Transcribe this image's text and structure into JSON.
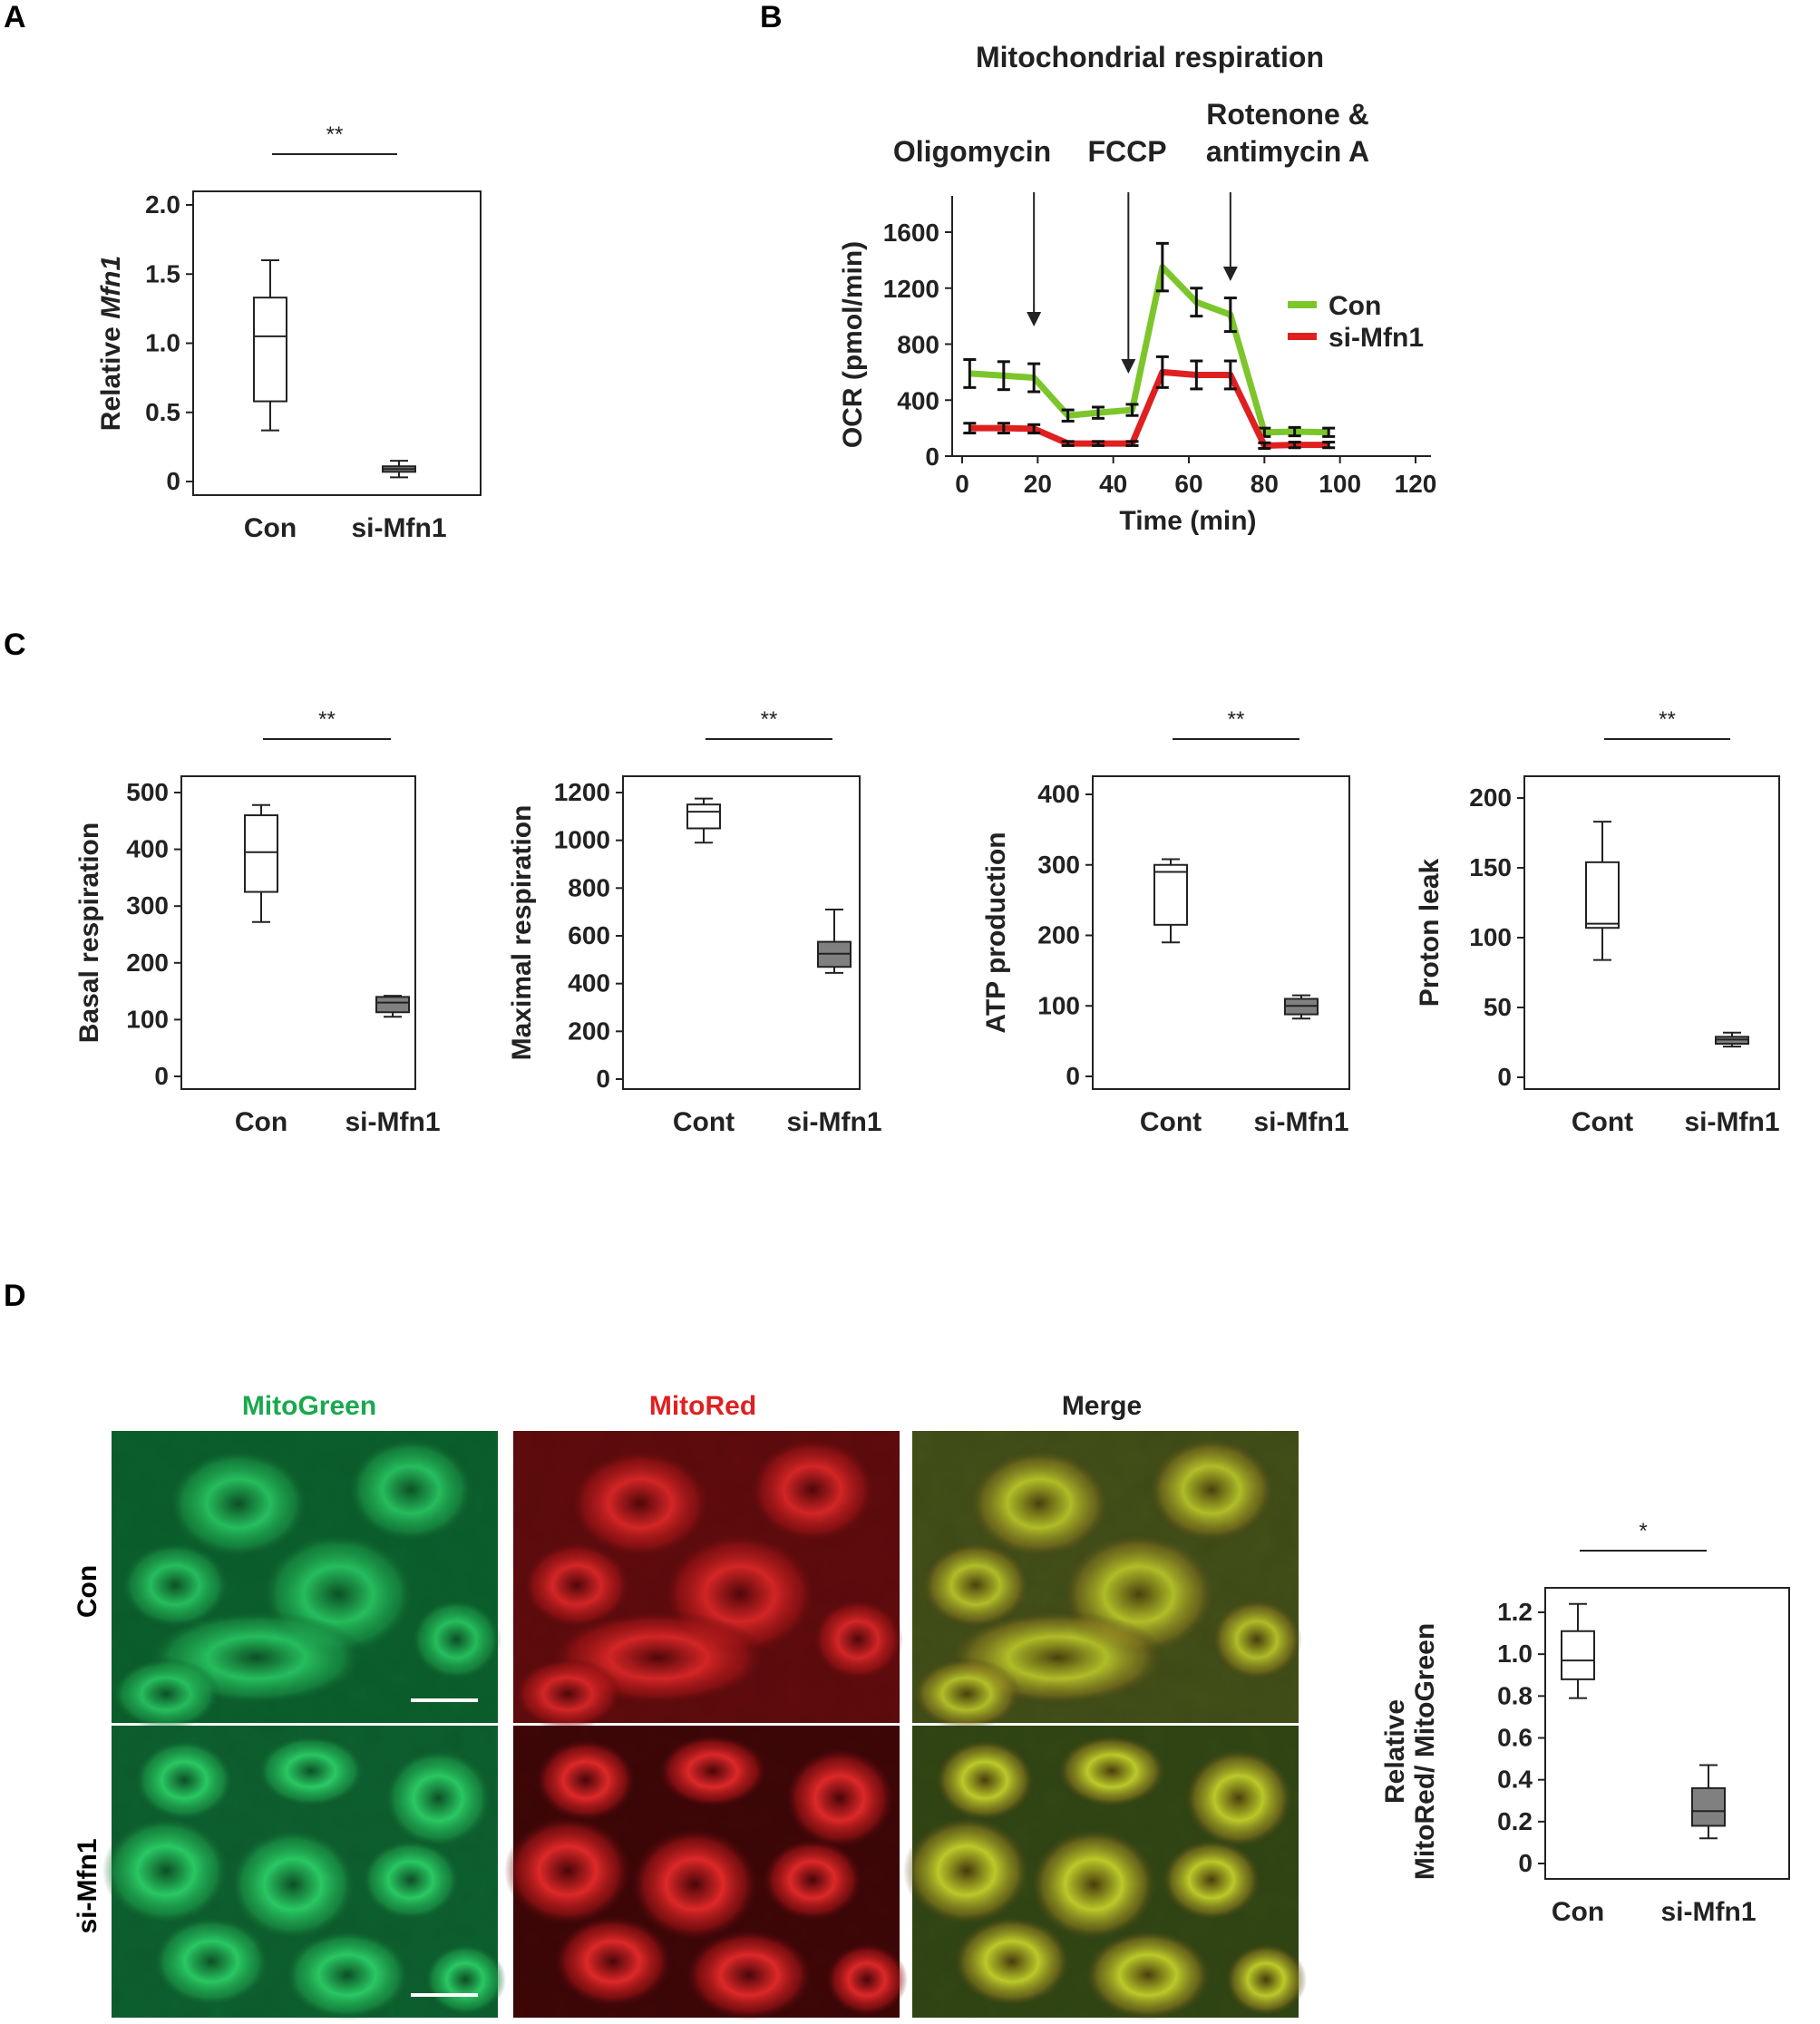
{
  "panels": {
    "A": "A",
    "B": "B",
    "C": "C",
    "D": "D"
  },
  "colors": {
    "con": "#7cc62b",
    "si": "#e02020",
    "box_filled": "#808080",
    "mitogreen": "#1aa84f",
    "mitored": "#e02020"
  },
  "chart_data": [
    {
      "id": "A",
      "type": "box",
      "ylabel_prefix": "Relative ",
      "ylabel_italic": "Mfn1",
      "categories": [
        "Con",
        "si-Mfn1"
      ],
      "ylim": [
        0,
        2.0
      ],
      "yticks": [
        {
          "v": 0,
          "t": "0"
        },
        {
          "v": 0.5,
          "t": "0.5"
        },
        {
          "v": 1,
          "t": "1.0"
        },
        {
          "v": 1.5,
          "t": "1.5"
        },
        {
          "v": 2,
          "t": "2.0"
        }
      ],
      "significance": "**",
      "boxes": [
        {
          "min": 0.37,
          "q1": 0.58,
          "median": 1.05,
          "q3": 1.33,
          "max": 1.6,
          "filled": false
        },
        {
          "min": 0.03,
          "q1": 0.07,
          "median": 0.09,
          "q3": 0.11,
          "max": 0.15,
          "filled": true
        }
      ]
    },
    {
      "id": "B",
      "type": "line",
      "title": "Mitochondrial respiration",
      "xlabel": "Time (min)",
      "ylabel": "OCR (pmol/min)",
      "xlim": [
        0,
        120
      ],
      "ylim": [
        0,
        1600
      ],
      "xticks": [
        0,
        20,
        40,
        60,
        80,
        100,
        120
      ],
      "yticks": [
        0,
        400,
        800,
        1200,
        1600
      ],
      "injections": [
        {
          "label": "Oligomycin",
          "x": 19
        },
        {
          "label": "FCCP",
          "x": 44
        },
        {
          "label": "Rotenone &",
          "label2": "antimycin A",
          "x": 71
        }
      ],
      "x": [
        2,
        11,
        19,
        28,
        36,
        45,
        53,
        62,
        71,
        80,
        88,
        97
      ],
      "series": [
        {
          "name": "Con",
          "values": [
            590,
            575,
            560,
            290,
            310,
            330,
            1350,
            1100,
            1010,
            170,
            175,
            170
          ],
          "err": [
            100,
            100,
            100,
            40,
            40,
            40,
            170,
            100,
            120,
            30,
            30,
            30
          ]
        },
        {
          "name": "si-Mfn1",
          "values": [
            200,
            200,
            195,
            90,
            90,
            90,
            600,
            580,
            580,
            75,
            80,
            80
          ],
          "err": [
            35,
            35,
            30,
            15,
            15,
            15,
            110,
            100,
            100,
            20,
            20,
            20
          ]
        }
      ]
    },
    {
      "id": "C1",
      "type": "box",
      "ylabel": "Basal respiration",
      "categories": [
        "Con",
        "si-Mfn1"
      ],
      "ylim": [
        0,
        500
      ],
      "yticks": [
        {
          "v": 0,
          "t": "0"
        },
        {
          "v": 100,
          "t": "100"
        },
        {
          "v": 200,
          "t": "200"
        },
        {
          "v": 300,
          "t": "300"
        },
        {
          "v": 400,
          "t": "400"
        },
        {
          "v": 500,
          "t": "500"
        }
      ],
      "significance": "**",
      "boxes": [
        {
          "min": 272,
          "q1": 325,
          "median": 395,
          "q3": 460,
          "max": 478,
          "filled": false
        },
        {
          "min": 105,
          "q1": 113,
          "median": 130,
          "q3": 140,
          "max": 142,
          "filled": true
        }
      ]
    },
    {
      "id": "C2",
      "type": "box",
      "ylabel": "Maximal respiration",
      "categories": [
        "Cont",
        "si-Mfn1"
      ],
      "ylim": [
        0,
        1200
      ],
      "yticks": [
        {
          "v": 0,
          "t": "0"
        },
        {
          "v": 200,
          "t": "200"
        },
        {
          "v": 400,
          "t": "400"
        },
        {
          "v": 600,
          "t": "600"
        },
        {
          "v": 800,
          "t": "800"
        },
        {
          "v": 1000,
          "t": "1000"
        },
        {
          "v": 1200,
          "t": "1200"
        }
      ],
      "significance": "**",
      "boxes": [
        {
          "min": 990,
          "q1": 1050,
          "median": 1120,
          "q3": 1150,
          "max": 1175,
          "filled": false
        },
        {
          "min": 445,
          "q1": 470,
          "median": 525,
          "q3": 575,
          "max": 710,
          "filled": true
        }
      ]
    },
    {
      "id": "C3",
      "type": "box",
      "ylabel": "ATP production",
      "categories": [
        "Cont",
        "si-Mfn1"
      ],
      "ylim": [
        0,
        400
      ],
      "yticks": [
        {
          "v": 0,
          "t": "0"
        },
        {
          "v": 100,
          "t": "100"
        },
        {
          "v": 200,
          "t": "200"
        },
        {
          "v": 300,
          "t": "300"
        },
        {
          "v": 400,
          "t": "400"
        }
      ],
      "significance": "**",
      "boxes": [
        {
          "min": 190,
          "q1": 215,
          "median": 290,
          "q3": 300,
          "max": 308,
          "filled": false
        },
        {
          "min": 82,
          "q1": 88,
          "median": 100,
          "q3": 110,
          "max": 115,
          "filled": true
        }
      ]
    },
    {
      "id": "C4",
      "type": "box",
      "ylabel": "Proton leak",
      "categories": [
        "Cont",
        "si-Mfn1"
      ],
      "ylim": [
        0,
        200
      ],
      "yticks": [
        {
          "v": 0,
          "t": "0"
        },
        {
          "v": 50,
          "t": "50"
        },
        {
          "v": 100,
          "t": "100"
        },
        {
          "v": 150,
          "t": "150"
        },
        {
          "v": 200,
          "t": "200"
        }
      ],
      "significance": "**",
      "boxes": [
        {
          "min": 84,
          "q1": 107,
          "median": 110,
          "q3": 154,
          "max": 183,
          "filled": false
        },
        {
          "min": 22,
          "q1": 24,
          "median": 27,
          "q3": 29,
          "max": 32,
          "filled": true
        }
      ]
    },
    {
      "id": "D",
      "type": "box",
      "ylabel_line1": "Relative",
      "ylabel_line2": "MitoRed/ MitoGreen",
      "categories": [
        "Con",
        "si-Mfn1"
      ],
      "ylim": [
        0,
        1.2
      ],
      "yticks": [
        {
          "v": 0,
          "t": "0"
        },
        {
          "v": 0.2,
          "t": "0.2"
        },
        {
          "v": 0.4,
          "t": "0.4"
        },
        {
          "v": 0.6,
          "t": "0.6"
        },
        {
          "v": 0.8,
          "t": "0.8"
        },
        {
          "v": 1.0,
          "t": "1.0"
        },
        {
          "v": 1.2,
          "t": "1.2"
        }
      ],
      "significance": "*",
      "boxes": [
        {
          "min": 0.79,
          "q1": 0.88,
          "median": 0.97,
          "q3": 1.11,
          "max": 1.24,
          "filled": false
        },
        {
          "min": 0.12,
          "q1": 0.18,
          "median": 0.25,
          "q3": 0.36,
          "max": 0.47,
          "filled": true
        }
      ]
    }
  ],
  "microscopy": {
    "columns": [
      "MitoGreen",
      "MitoRed",
      "Merge"
    ],
    "rows": [
      "Con",
      "si-Mfn1"
    ]
  }
}
